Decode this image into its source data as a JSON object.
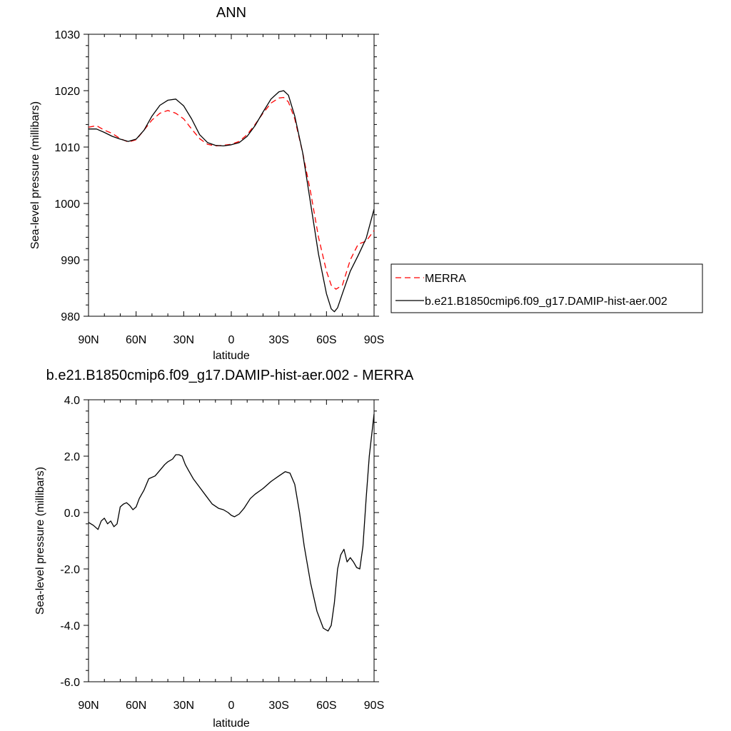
{
  "chart_data": [
    {
      "type": "line",
      "title": "ANN",
      "xlabel": "latitude",
      "ylabel": "Sea-level pressure (millibars)",
      "xlim": [
        90,
        -90
      ],
      "ylim": [
        980,
        1030
      ],
      "x_ticks": [
        {
          "value": 90,
          "label": "90N"
        },
        {
          "value": 60,
          "label": "60N"
        },
        {
          "value": 30,
          "label": "30N"
        },
        {
          "value": 0,
          "label": "0"
        },
        {
          "value": -30,
          "label": "30S"
        },
        {
          "value": -60,
          "label": "60S"
        },
        {
          "value": -90,
          "label": "90S"
        }
      ],
      "y_ticks": [
        {
          "value": 980,
          "label": "980"
        },
        {
          "value": 990,
          "label": "990"
        },
        {
          "value": 1000,
          "label": "1000"
        },
        {
          "value": 1010,
          "label": "1010"
        },
        {
          "value": 1020,
          "label": "1020"
        },
        {
          "value": 1030,
          "label": "1030"
        }
      ],
      "legend": "right",
      "series": [
        {
          "name": "MERRA",
          "color": "#ff0000",
          "dash": true,
          "x": [
            90,
            85,
            80,
            75,
            70,
            65,
            60,
            55,
            50,
            45,
            40,
            35,
            30,
            25,
            20,
            15,
            10,
            5,
            0,
            -5,
            -10,
            -15,
            -20,
            -25,
            -30,
            -33,
            -36,
            -40,
            -45,
            -50,
            -55,
            -60,
            -63,
            -66,
            -70,
            -75,
            -80,
            -85,
            -90
          ],
          "y": [
            1013.5,
            1013.8,
            1013.0,
            1012.4,
            1011.5,
            1010.9,
            1011.3,
            1013.0,
            1014.8,
            1016.0,
            1016.5,
            1016.0,
            1015.0,
            1013.2,
            1011.5,
            1010.5,
            1010.2,
            1010.3,
            1010.5,
            1011.0,
            1012.2,
            1014.0,
            1016.0,
            1017.8,
            1018.7,
            1018.8,
            1018.0,
            1015.0,
            1009.0,
            1002.0,
            994.0,
            988.0,
            985.5,
            984.8,
            985.5,
            990.0,
            992.8,
            993.3,
            995.2
          ]
        },
        {
          "name": "b.e21.B1850cmip6.f09_g17.DAMIP-hist-aer.002",
          "color": "#000000",
          "dash": false,
          "x": [
            90,
            85,
            80,
            75,
            70,
            65,
            60,
            55,
            50,
            45,
            40,
            35,
            30,
            25,
            20,
            15,
            10,
            5,
            0,
            -5,
            -10,
            -15,
            -20,
            -25,
            -30,
            -33,
            -36,
            -40,
            -45,
            -50,
            -55,
            -60,
            -63,
            -65,
            -67,
            -70,
            -75,
            -80,
            -85,
            -90
          ],
          "y": [
            1013.2,
            1013.2,
            1012.6,
            1011.9,
            1011.4,
            1011.0,
            1011.4,
            1013.0,
            1015.5,
            1017.4,
            1018.3,
            1018.5,
            1017.3,
            1015.0,
            1012.2,
            1010.8,
            1010.3,
            1010.2,
            1010.4,
            1010.8,
            1011.9,
            1013.8,
            1016.2,
            1018.5,
            1019.8,
            1020.0,
            1019.2,
            1015.5,
            1009.0,
            1000.0,
            991.0,
            984.0,
            981.3,
            980.8,
            981.5,
            984.0,
            988.0,
            990.8,
            993.8,
            999.0
          ]
        }
      ]
    },
    {
      "type": "line",
      "title": "b.e21.B1850cmip6.f09_g17.DAMIP-hist-aer.002 - MERRA",
      "xlabel": "latitude",
      "ylabel": "Sea-level pressure (millibars)",
      "xlim": [
        90,
        -90
      ],
      "ylim": [
        -6,
        4
      ],
      "x_ticks": [
        {
          "value": 90,
          "label": "90N"
        },
        {
          "value": 60,
          "label": "60N"
        },
        {
          "value": 30,
          "label": "30N"
        },
        {
          "value": 0,
          "label": "0"
        },
        {
          "value": -30,
          "label": "30S"
        },
        {
          "value": -60,
          "label": "60S"
        },
        {
          "value": -90,
          "label": "90S"
        }
      ],
      "y_ticks": [
        {
          "value": -6,
          "label": "-6.0"
        },
        {
          "value": -4,
          "label": "-4.0"
        },
        {
          "value": -2,
          "label": "-2.0"
        },
        {
          "value": 0,
          "label": "0.0"
        },
        {
          "value": 2,
          "label": "2.0"
        },
        {
          "value": 4,
          "label": "4.0"
        }
      ],
      "series": [
        {
          "color": "#000000",
          "dash": false,
          "x": [
            90,
            87,
            84,
            82,
            80,
            78,
            76,
            74,
            72,
            70,
            68,
            66,
            64,
            62,
            60,
            58,
            55,
            52,
            48,
            45,
            42,
            40,
            37,
            35,
            33,
            31,
            29,
            27,
            24,
            20,
            16,
            12,
            8,
            5,
            2,
            0,
            -2,
            -5,
            -8,
            -12,
            -15,
            -20,
            -25,
            -30,
            -34,
            -37,
            -40,
            -43,
            -46,
            -50,
            -54,
            -58,
            -61,
            -63,
            -65,
            -67,
            -69,
            -71,
            -73,
            -75,
            -77,
            -79,
            -81,
            -83,
            -85,
            -87,
            -90
          ],
          "y": [
            -0.35,
            -0.45,
            -0.6,
            -0.3,
            -0.2,
            -0.4,
            -0.3,
            -0.5,
            -0.4,
            0.2,
            0.3,
            0.35,
            0.25,
            0.1,
            0.2,
            0.5,
            0.8,
            1.2,
            1.3,
            1.5,
            1.7,
            1.8,
            1.9,
            2.05,
            2.05,
            2.0,
            1.7,
            1.5,
            1.2,
            0.9,
            0.6,
            0.3,
            0.15,
            0.1,
            0.0,
            -0.1,
            -0.15,
            -0.05,
            0.15,
            0.5,
            0.65,
            0.85,
            1.1,
            1.3,
            1.45,
            1.4,
            1.0,
            0.0,
            -1.2,
            -2.5,
            -3.5,
            -4.1,
            -4.2,
            -4.0,
            -3.2,
            -2.0,
            -1.5,
            -1.3,
            -1.75,
            -1.6,
            -1.75,
            -1.95,
            -2.0,
            -1.2,
            0.5,
            2.0,
            3.5
          ]
        }
      ]
    }
  ]
}
